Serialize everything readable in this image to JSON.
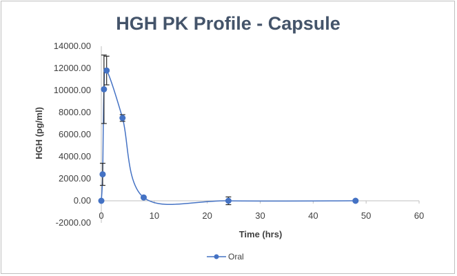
{
  "chart_data": {
    "type": "line",
    "title": "HGH PK Profile - Capsule",
    "xlabel": "Time (hrs)",
    "ylabel": "HGH (pg/ml)",
    "xlim": [
      0,
      60
    ],
    "ylim": [
      -2000,
      14000
    ],
    "x_ticks": [
      "0",
      "10",
      "20",
      "30",
      "40",
      "50",
      "60"
    ],
    "y_ticks": [
      "-2000.00",
      "0.00",
      "2000.00",
      "4000.00",
      "6000.00",
      "8000.00",
      "10000.00",
      "12000.00",
      "14000.00"
    ],
    "grid": false,
    "legend_position": "bottom",
    "series": [
      {
        "name": "Oral",
        "color": "#4472c4",
        "smoothed": true,
        "x": [
          0,
          0.25,
          0.5,
          1,
          4,
          8,
          24,
          48
        ],
        "y": [
          0,
          2400,
          10100,
          11800,
          7500,
          300,
          0,
          0
        ],
        "error": [
          0,
          1000,
          3100,
          1300,
          300,
          100,
          350,
          100
        ]
      }
    ]
  }
}
